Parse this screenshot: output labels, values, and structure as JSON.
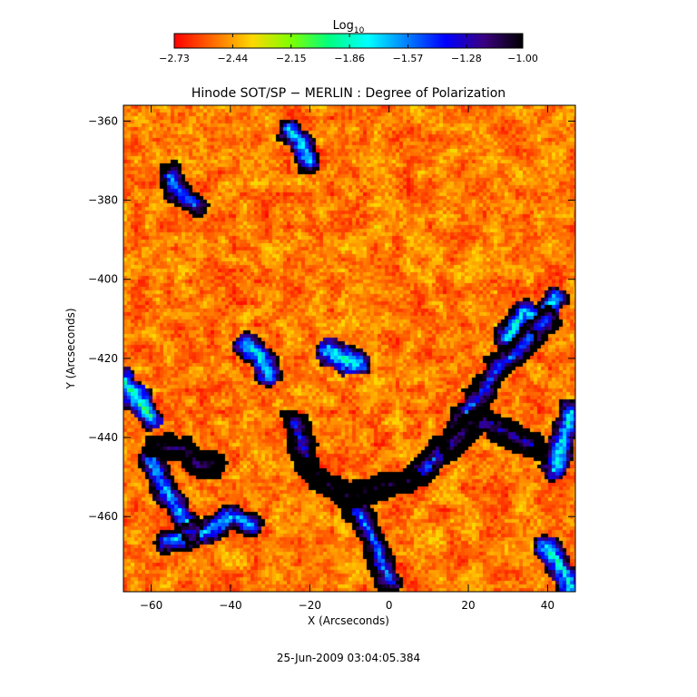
{
  "chart_data": {
    "type": "heatmap",
    "title": "Hinode SOT/SP − MERLIN : Degree of Polarization",
    "xlabel": "X (Arcseconds)",
    "ylabel": "Y (Arcseconds)",
    "xlim": [
      -67,
      47
    ],
    "ylim": [
      -479,
      -356
    ],
    "x_ticks": [
      -60,
      -40,
      -20,
      0,
      20,
      40
    ],
    "x_tick_labels": [
      "−60",
      "−40",
      "−20",
      "0",
      "20",
      "40"
    ],
    "y_ticks": [
      -360,
      -380,
      -400,
      -420,
      -440,
      -460
    ],
    "y_tick_labels": [
      "−360",
      "−380",
      "−400",
      "−420",
      "−440",
      "−460"
    ],
    "colorbar": {
      "label_base": "Log",
      "label_sub": "10",
      "range": [
        -2.73,
        -1.0
      ],
      "tick_values": [
        -2.73,
        -2.44,
        -2.15,
        -1.86,
        -1.57,
        -1.28,
        -1.0
      ],
      "tick_labels": [
        "−2.73",
        "−2.44",
        "−2.15",
        "−1.86",
        "−1.57",
        "−1.28",
        "−1.00"
      ],
      "colormap": [
        "#ff0000",
        "#ff6a00",
        "#ffd700",
        "#7fff00",
        "#00ff80",
        "#00ffff",
        "#0080ff",
        "#0000ff",
        "#3a0080",
        "#000000"
      ]
    },
    "background_value": -2.6,
    "features": [
      {
        "kind": "network-lane",
        "value": -1.15,
        "points": [
          [
            -58,
            -442
          ],
          [
            -52,
            -443
          ],
          [
            -48,
            -447
          ],
          [
            -44,
            -447
          ]
        ]
      },
      {
        "kind": "network-lane",
        "value": -1.05,
        "points": [
          [
            -20,
            -448
          ],
          [
            -15,
            -452
          ],
          [
            -10,
            -455
          ],
          [
            -5,
            -453
          ],
          [
            0,
            -452
          ],
          [
            6,
            -451
          ]
        ]
      },
      {
        "kind": "network-lane",
        "value": -1.4,
        "points": [
          [
            -24,
            -436
          ],
          [
            -22,
            -442
          ],
          [
            -20,
            -447
          ]
        ]
      },
      {
        "kind": "network-lane",
        "value": -1.5,
        "points": [
          [
            6,
            -451
          ],
          [
            12,
            -445
          ],
          [
            16,
            -440
          ],
          [
            20,
            -433
          ],
          [
            24,
            -428
          ],
          [
            28,
            -421
          ],
          [
            32,
            -419
          ],
          [
            36,
            -414
          ],
          [
            40,
            -410
          ]
        ]
      },
      {
        "kind": "network-lane",
        "value": -1.3,
        "points": [
          [
            16,
            -442
          ],
          [
            20,
            -438
          ],
          [
            24,
            -436
          ],
          [
            28,
            -438
          ],
          [
            32,
            -440
          ],
          [
            36,
            -442
          ]
        ]
      },
      {
        "kind": "network-lane",
        "value": -1.6,
        "points": [
          [
            -10,
            -455
          ],
          [
            -6,
            -462
          ],
          [
            -3,
            -468
          ],
          [
            0,
            -476
          ]
        ]
      },
      {
        "kind": "network-lane",
        "value": -1.7,
        "points": [
          [
            -60,
            -446
          ],
          [
            -57,
            -452
          ],
          [
            -53,
            -459
          ],
          [
            -50,
            -463
          ]
        ]
      },
      {
        "kind": "network-lane",
        "value": -1.7,
        "points": [
          [
            -56,
            -466
          ],
          [
            -46,
            -464
          ],
          [
            -40,
            -460
          ],
          [
            -35,
            -462
          ]
        ]
      },
      {
        "kind": "network-lane",
        "value": -1.8,
        "points": [
          [
            -36,
            -417
          ],
          [
            -33,
            -419
          ],
          [
            -30,
            -424
          ]
        ]
      },
      {
        "kind": "network-lane",
        "value": -1.65,
        "points": [
          [
            -55,
            -374
          ],
          [
            -53,
            -378
          ],
          [
            -49,
            -381
          ]
        ]
      },
      {
        "kind": "network-lane",
        "value": -1.75,
        "points": [
          [
            -25,
            -362
          ],
          [
            -22,
            -366
          ],
          [
            -20,
            -370
          ]
        ]
      },
      {
        "kind": "network-lane",
        "value": -1.8,
        "points": [
          [
            30,
            -415
          ],
          [
            32,
            -411
          ],
          [
            34,
            -408
          ],
          [
            38,
            -411
          ],
          [
            42,
            -405
          ]
        ]
      },
      {
        "kind": "network-lane",
        "value": -1.8,
        "points": [
          [
            42,
            -448
          ],
          [
            44,
            -440
          ],
          [
            46,
            -434
          ]
        ]
      },
      {
        "kind": "network-lane",
        "value": -1.95,
        "points": [
          [
            -67,
            -426
          ],
          [
            -63,
            -431
          ],
          [
            -60,
            -435
          ]
        ]
      },
      {
        "kind": "network-lane",
        "value": -1.9,
        "points": [
          [
            -15,
            -418
          ],
          [
            -12,
            -420
          ],
          [
            -8,
            -421
          ]
        ]
      },
      {
        "kind": "network-lane",
        "value": -1.85,
        "points": [
          [
            40,
            -468
          ],
          [
            44,
            -474
          ],
          [
            46,
            -478
          ]
        ]
      }
    ]
  },
  "footer": {
    "timestamp": "25-Jun-2009 03:04:05.384"
  }
}
